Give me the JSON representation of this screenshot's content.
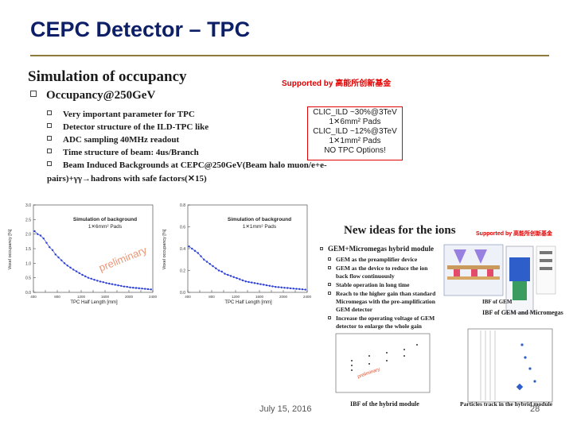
{
  "slide": {
    "title": "CEPC Detector – TPC",
    "subtitle": "Simulation of occupancy",
    "supported": "Supported by 高能所创新基金",
    "bullets": {
      "main": "Occupancy@250GeV",
      "items": [
        "Very important parameter for TPC",
        "Detector structure of the ILD-TPC like",
        "ADC sampling 40MHz readout",
        "Time structure of beam: 4us/Branch",
        "Beam Induced Backgrounds at CEPC@250GeV(Beam halo muon/e+e-",
        "pairs)+γγ→hadrons with safe factors(✕15)"
      ]
    },
    "redbox": [
      "CLIC_ILD ~30%@3TeV",
      "1✕6mm² Pads",
      "CLIC_ILD ~12%@3TeV",
      "1✕1mm² Pads",
      "NO TPC Options!"
    ],
    "footer_date": "July 15, 2016",
    "page_number": "28"
  },
  "chart_data": [
    {
      "type": "scatter",
      "title": "Simulation of background",
      "subtitle": "1✕6mm² Pads",
      "watermark": "preliminary",
      "ylabel": "Voxel occupancy [%]",
      "xlabel": "TPC Half Length [mm]",
      "yticks": [
        "0.0",
        "0.5",
        "1.0",
        "1.5",
        "2.0",
        "2.5",
        "3.0"
      ],
      "xticks": [
        "400",
        "600",
        "800",
        "1000",
        "1200",
        "1400",
        "1600",
        "1800",
        "2000",
        "2200",
        "2400"
      ],
      "ylim": [
        0,
        3.0
      ],
      "xlim": [
        400,
        2400
      ],
      "series": [
        {
          "x": [
            420,
            470,
            520,
            570,
            620,
            670,
            720,
            770,
            820,
            870,
            920,
            970,
            1020,
            1070,
            1120,
            1170,
            1220,
            1270,
            1320,
            1370,
            1420,
            1470,
            1520,
            1570,
            1620,
            1670,
            1720,
            1770,
            1820,
            1870,
            1920,
            1970,
            2020,
            2070,
            2120,
            2170,
            2220,
            2270,
            2320,
            2370
          ],
          "y": [
            2.1,
            2.0,
            1.95,
            1.85,
            1.7,
            1.55,
            1.45,
            1.3,
            1.2,
            1.1,
            1.0,
            0.92,
            0.85,
            0.78,
            0.72,
            0.66,
            0.6,
            0.55,
            0.5,
            0.47,
            0.43,
            0.4,
            0.37,
            0.35,
            0.32,
            0.3,
            0.28,
            0.26,
            0.24,
            0.22,
            0.2,
            0.19,
            0.17,
            0.16,
            0.15,
            0.14,
            0.13,
            0.12,
            0.11,
            0.1
          ]
        }
      ],
      "color": "#2b3fd6"
    },
    {
      "type": "scatter",
      "title": "Simulation of background",
      "subtitle": "1✕1mm² Pads",
      "ylabel": "Voxel occupancy [%]",
      "xlabel": "TPC Half Length [mm]",
      "yticks": [
        "0.0",
        "0.2",
        "0.4",
        "0.6",
        "0.8"
      ],
      "xticks": [
        "400",
        "600",
        "800",
        "1000",
        "1200",
        "1400",
        "1600",
        "1800",
        "2000",
        "2200",
        "2400"
      ],
      "ylim": [
        0,
        0.8
      ],
      "xlim": [
        400,
        2400
      ],
      "series": [
        {
          "x": [
            420,
            470,
            520,
            570,
            620,
            670,
            720,
            770,
            820,
            870,
            920,
            970,
            1020,
            1070,
            1120,
            1170,
            1220,
            1270,
            1320,
            1370,
            1420,
            1470,
            1520,
            1570,
            1620,
            1670,
            1720,
            1770,
            1820,
            1870,
            1920,
            1970,
            2020,
            2070,
            2120,
            2170,
            2220,
            2270,
            2320,
            2370
          ],
          "y": [
            0.42,
            0.4,
            0.38,
            0.36,
            0.33,
            0.3,
            0.28,
            0.26,
            0.24,
            0.22,
            0.2,
            0.19,
            0.17,
            0.16,
            0.15,
            0.14,
            0.13,
            0.12,
            0.11,
            0.1,
            0.095,
            0.09,
            0.085,
            0.08,
            0.075,
            0.07,
            0.065,
            0.06,
            0.055,
            0.05,
            0.048,
            0.045,
            0.042,
            0.04,
            0.037,
            0.035,
            0.032,
            0.03,
            0.028,
            0.025
          ]
        }
      ],
      "color": "#2b3fd6"
    }
  ],
  "ions": {
    "title": "New ideas for the ions",
    "supported": "Supported by 高能所创新基金",
    "main": "GEM+Micromegas hybrid module",
    "items": [
      "GEM as the preamplifier device",
      "GEM as the device to reduce the ion",
      "back flow continuously",
      "Stable operation in long time",
      "Reach to the higher gain than standard",
      "Micromegas with the pre-amplification",
      "GEM detector",
      "Increase the operating voltage of GEM",
      "detector to enlarge the whole gain"
    ],
    "cap_ibf_gem": "IBF of GEM",
    "cap_ibf_gem_mm": "IBF of GEM and Micromegas",
    "cap_ibf_hybrid": "IBF of the hybrid module",
    "cap_tracks": "Particles track in the hybrid module"
  }
}
